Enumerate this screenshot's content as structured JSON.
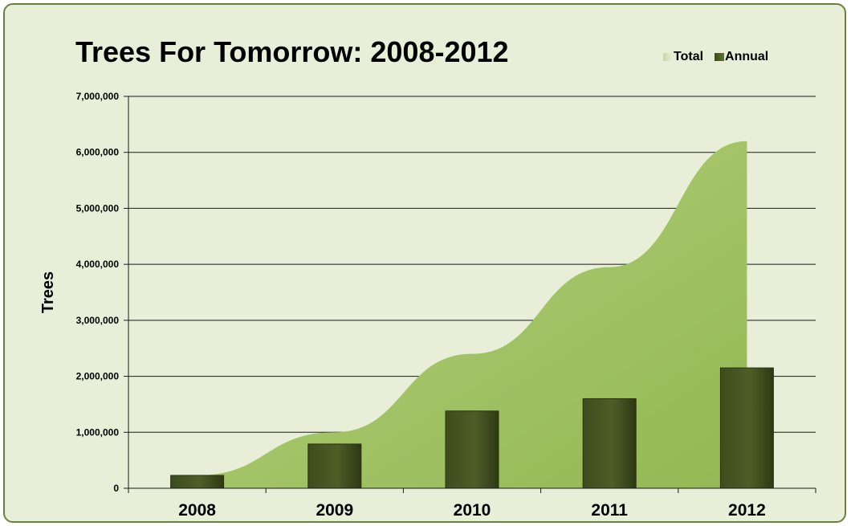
{
  "chart_data": {
    "type": "bar",
    "title": "Trees For Tomorrow: 2008-2012",
    "ylabel": "Trees",
    "xlabel": "",
    "categories": [
      "2008",
      "2009",
      "2010",
      "2011",
      "2012"
    ],
    "ylim": [
      0,
      7000000
    ],
    "yticks": [
      0,
      1000000,
      2000000,
      3000000,
      4000000,
      5000000,
      6000000,
      7000000
    ],
    "ytick_labels": [
      "0",
      "1,000,000",
      "2,000,000",
      "3,000,000",
      "4,000,000",
      "5,000,000",
      "6,000,000",
      "7,000,000"
    ],
    "grid": true,
    "legend_position": "top-right",
    "series": [
      {
        "name": "Total",
        "type": "area",
        "values": [
          230000,
          1000000,
          2400000,
          3950000,
          6200000
        ],
        "color": "#9fc15e"
      },
      {
        "name": "Annual",
        "type": "bar",
        "values": [
          230000,
          790000,
          1380000,
          1600000,
          2150000
        ],
        "color": "#4a5a25"
      }
    ]
  }
}
